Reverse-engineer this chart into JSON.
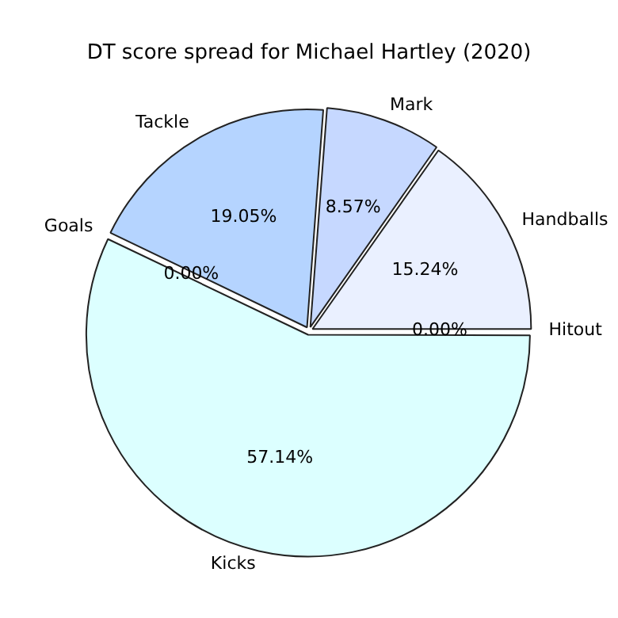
{
  "chart_data": {
    "type": "pie",
    "title": "DT score spread for Michael Hartley (2020)",
    "categories": [
      "Hitout",
      "Handballs",
      "Mark",
      "Tackle",
      "Goals",
      "Kicks"
    ],
    "values": [
      0,
      15.24,
      8.57,
      19.05,
      0,
      57.14
    ],
    "colors": [
      "#e6f0ff",
      "#eaf0ff",
      "#c6d8ff",
      "#b5d4ff",
      "#c8e4ff",
      "#dcffff"
    ],
    "value_labels": [
      "0.00%",
      "15.24%",
      "8.57%",
      "19.05%",
      "0.00%",
      "57.14%"
    ],
    "legend": false
  }
}
